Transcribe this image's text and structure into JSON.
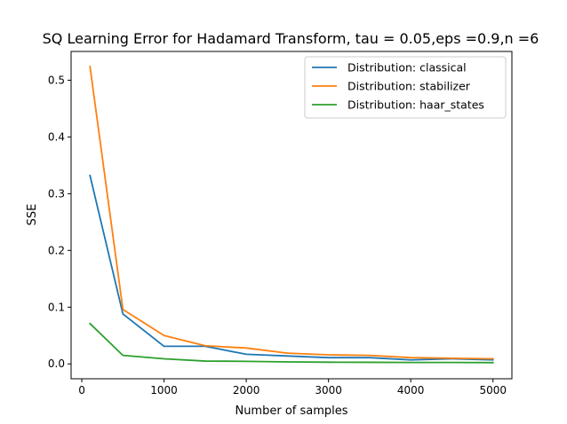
{
  "chart_data": {
    "type": "line",
    "title": "SQ Learning Error for Hadamard Transform, tau = 0.05,eps =0.9,n =6",
    "xlabel": "Number of samples",
    "ylabel": "SSE",
    "xlim": [
      -130,
      5230
    ],
    "ylim": [
      -0.0262,
      0.5507
    ],
    "xticks": [
      0,
      1000,
      2000,
      3000,
      4000,
      5000
    ],
    "xtick_labels": [
      "0",
      "1000",
      "2000",
      "3000",
      "4000",
      "5000"
    ],
    "yticks": [
      0.0,
      0.1,
      0.2,
      0.3,
      0.4,
      0.5
    ],
    "ytick_labels": [
      "0.0",
      "0.1",
      "0.2",
      "0.3",
      "0.4",
      "0.5"
    ],
    "grid": false,
    "legend_position": "top-right",
    "x": [
      100,
      500,
      1000,
      1500,
      2000,
      2500,
      3000,
      3500,
      4000,
      4500,
      5000
    ],
    "series": [
      {
        "name": "Distribution: classical",
        "color": "#1f77b4",
        "values": [
          0.332,
          0.088,
          0.031,
          0.031,
          0.017,
          0.014,
          0.011,
          0.011,
          0.007,
          0.009,
          0.007
        ]
      },
      {
        "name": "Distribution: stabilizer",
        "color": "#ff7f0e",
        "values": [
          0.524,
          0.096,
          0.05,
          0.032,
          0.028,
          0.019,
          0.016,
          0.015,
          0.011,
          0.01,
          0.009
        ]
      },
      {
        "name": "Distribution: haar_states",
        "color": "#2ca02c",
        "values": [
          0.071,
          0.015,
          0.009,
          0.005,
          0.0045,
          0.0035,
          0.003,
          0.0028,
          0.0025,
          0.0025,
          0.0022
        ]
      }
    ]
  }
}
